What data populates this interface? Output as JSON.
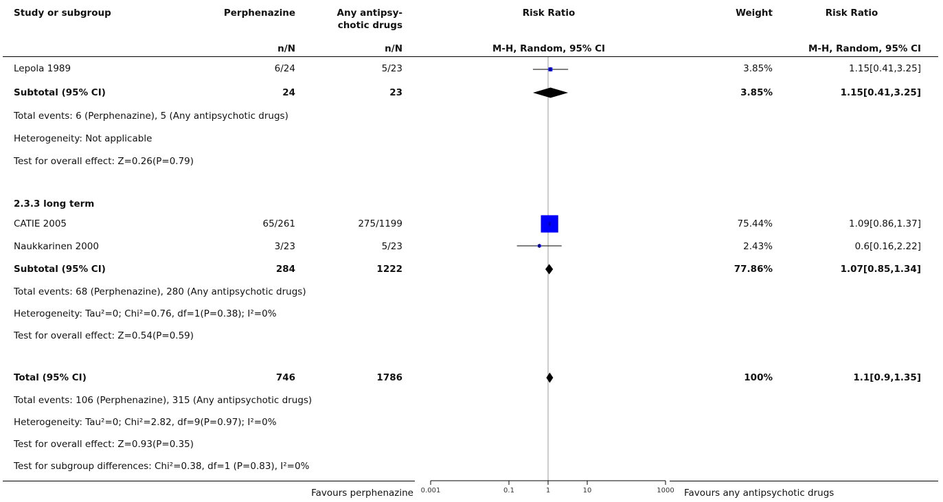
{
  "header": {
    "study": "Study or subgroup",
    "exp_name": "Perphenazine",
    "ctl_name_1": "Any antipsy-",
    "ctl_name_2": "chotic drugs",
    "rr": "Risk Ratio",
    "weight": "Weight",
    "rr2": "Risk Ratio",
    "exp_sub": "n/N",
    "ctl_sub": "n/N",
    "rr_method": "M-H, Random, 95% CI",
    "rr2_method": "M-H, Random, 95% CI"
  },
  "rows": [
    {
      "study": "Lepola 1989",
      "exp": "6/24",
      "ctl": "5/23",
      "weight": "3.85%",
      "ci": "1.15[0.41,3.25]"
    },
    {
      "study": "Subtotal (95% CI)",
      "exp": "24",
      "ctl": "23",
      "weight": "3.85%",
      "ci": "1.15[0.41,3.25]"
    },
    {
      "study": "Total events: 6 (Perphenazine), 5 (Any antipsychotic drugs)"
    },
    {
      "study": "Heterogeneity: Not applicable"
    },
    {
      "study": "Test for overall effect: Z=0.26(P=0.79)"
    },
    {
      "study": "2.3.3 long term"
    },
    {
      "study": "CATIE 2005",
      "exp": "65/261",
      "ctl": "275/1199",
      "weight": "75.44%",
      "ci": "1.09[0.86,1.37]"
    },
    {
      "study": "Naukkarinen 2000",
      "exp": "3/23",
      "ctl": "5/23",
      "weight": "2.43%",
      "ci": "0.6[0.16,2.22]"
    },
    {
      "study": "Subtotal (95% CI)",
      "exp": "284",
      "ctl": "1222",
      "weight": "77.86%",
      "ci": "1.07[0.85,1.34]"
    },
    {
      "study": "Total events: 68 (Perphenazine), 280 (Any antipsychotic drugs)"
    },
    {
      "study": "Heterogeneity: Tau²=0; Chi²=0.76, df=1(P=0.38); I²=0%"
    },
    {
      "study": "Test for overall effect: Z=0.54(P=0.59)"
    },
    {
      "study": "Total (95% CI)",
      "exp": "746",
      "ctl": "1786",
      "weight": "100%",
      "ci": "1.1[0.9,1.35]"
    },
    {
      "study": "Total events: 106 (Perphenazine), 315 (Any antipsychotic drugs)"
    },
    {
      "study": "Heterogeneity: Tau²=0; Chi²=2.82, df=9(P=0.97); I²=0%"
    },
    {
      "study": "Test for overall effect: Z=0.93(P=0.35)"
    },
    {
      "study": "Test for subgroup differences: Chi²=0.38, df=1 (P=0.83), I²=0%"
    }
  ],
  "footer": {
    "favours_left": "Favours perphenazine",
    "favours_right": "Favours any antipsychotic drugs"
  },
  "chart_data": {
    "type": "forest",
    "scale": "log",
    "xlim": [
      0.001,
      1000
    ],
    "null_value": 1,
    "ticks": [
      {
        "value": 0.001,
        "label": "0.001"
      },
      {
        "value": 0.1,
        "label": "0.1"
      },
      {
        "value": 1,
        "label": "1"
      },
      {
        "value": 10,
        "label": "10"
      },
      {
        "value": 1000,
        "label": "1000"
      }
    ],
    "studies": [
      {
        "name": "Lepola 1989",
        "rr": 1.15,
        "lo": 0.41,
        "hi": 3.25,
        "weight": 3.85
      },
      {
        "name": "CATIE 2005",
        "rr": 1.09,
        "lo": 0.86,
        "hi": 1.37,
        "weight": 75.44
      },
      {
        "name": "Naukkarinen 2000",
        "rr": 0.6,
        "lo": 0.16,
        "hi": 2.22,
        "weight": 2.43
      }
    ],
    "pooled": [
      {
        "name": "Subtotal (95% CI)",
        "rr": 1.15,
        "lo": 0.41,
        "hi": 3.25
      },
      {
        "name": "Subtotal (95% CI)",
        "rr": 1.07,
        "lo": 0.85,
        "hi": 1.34
      },
      {
        "name": "Total (95% CI)",
        "rr": 1.1,
        "lo": 0.9,
        "hi": 1.35
      }
    ],
    "colors": {
      "study_box": "#0000ff",
      "diamond": "#000000",
      "axis": "#000000",
      "null_line": "#999999"
    }
  }
}
